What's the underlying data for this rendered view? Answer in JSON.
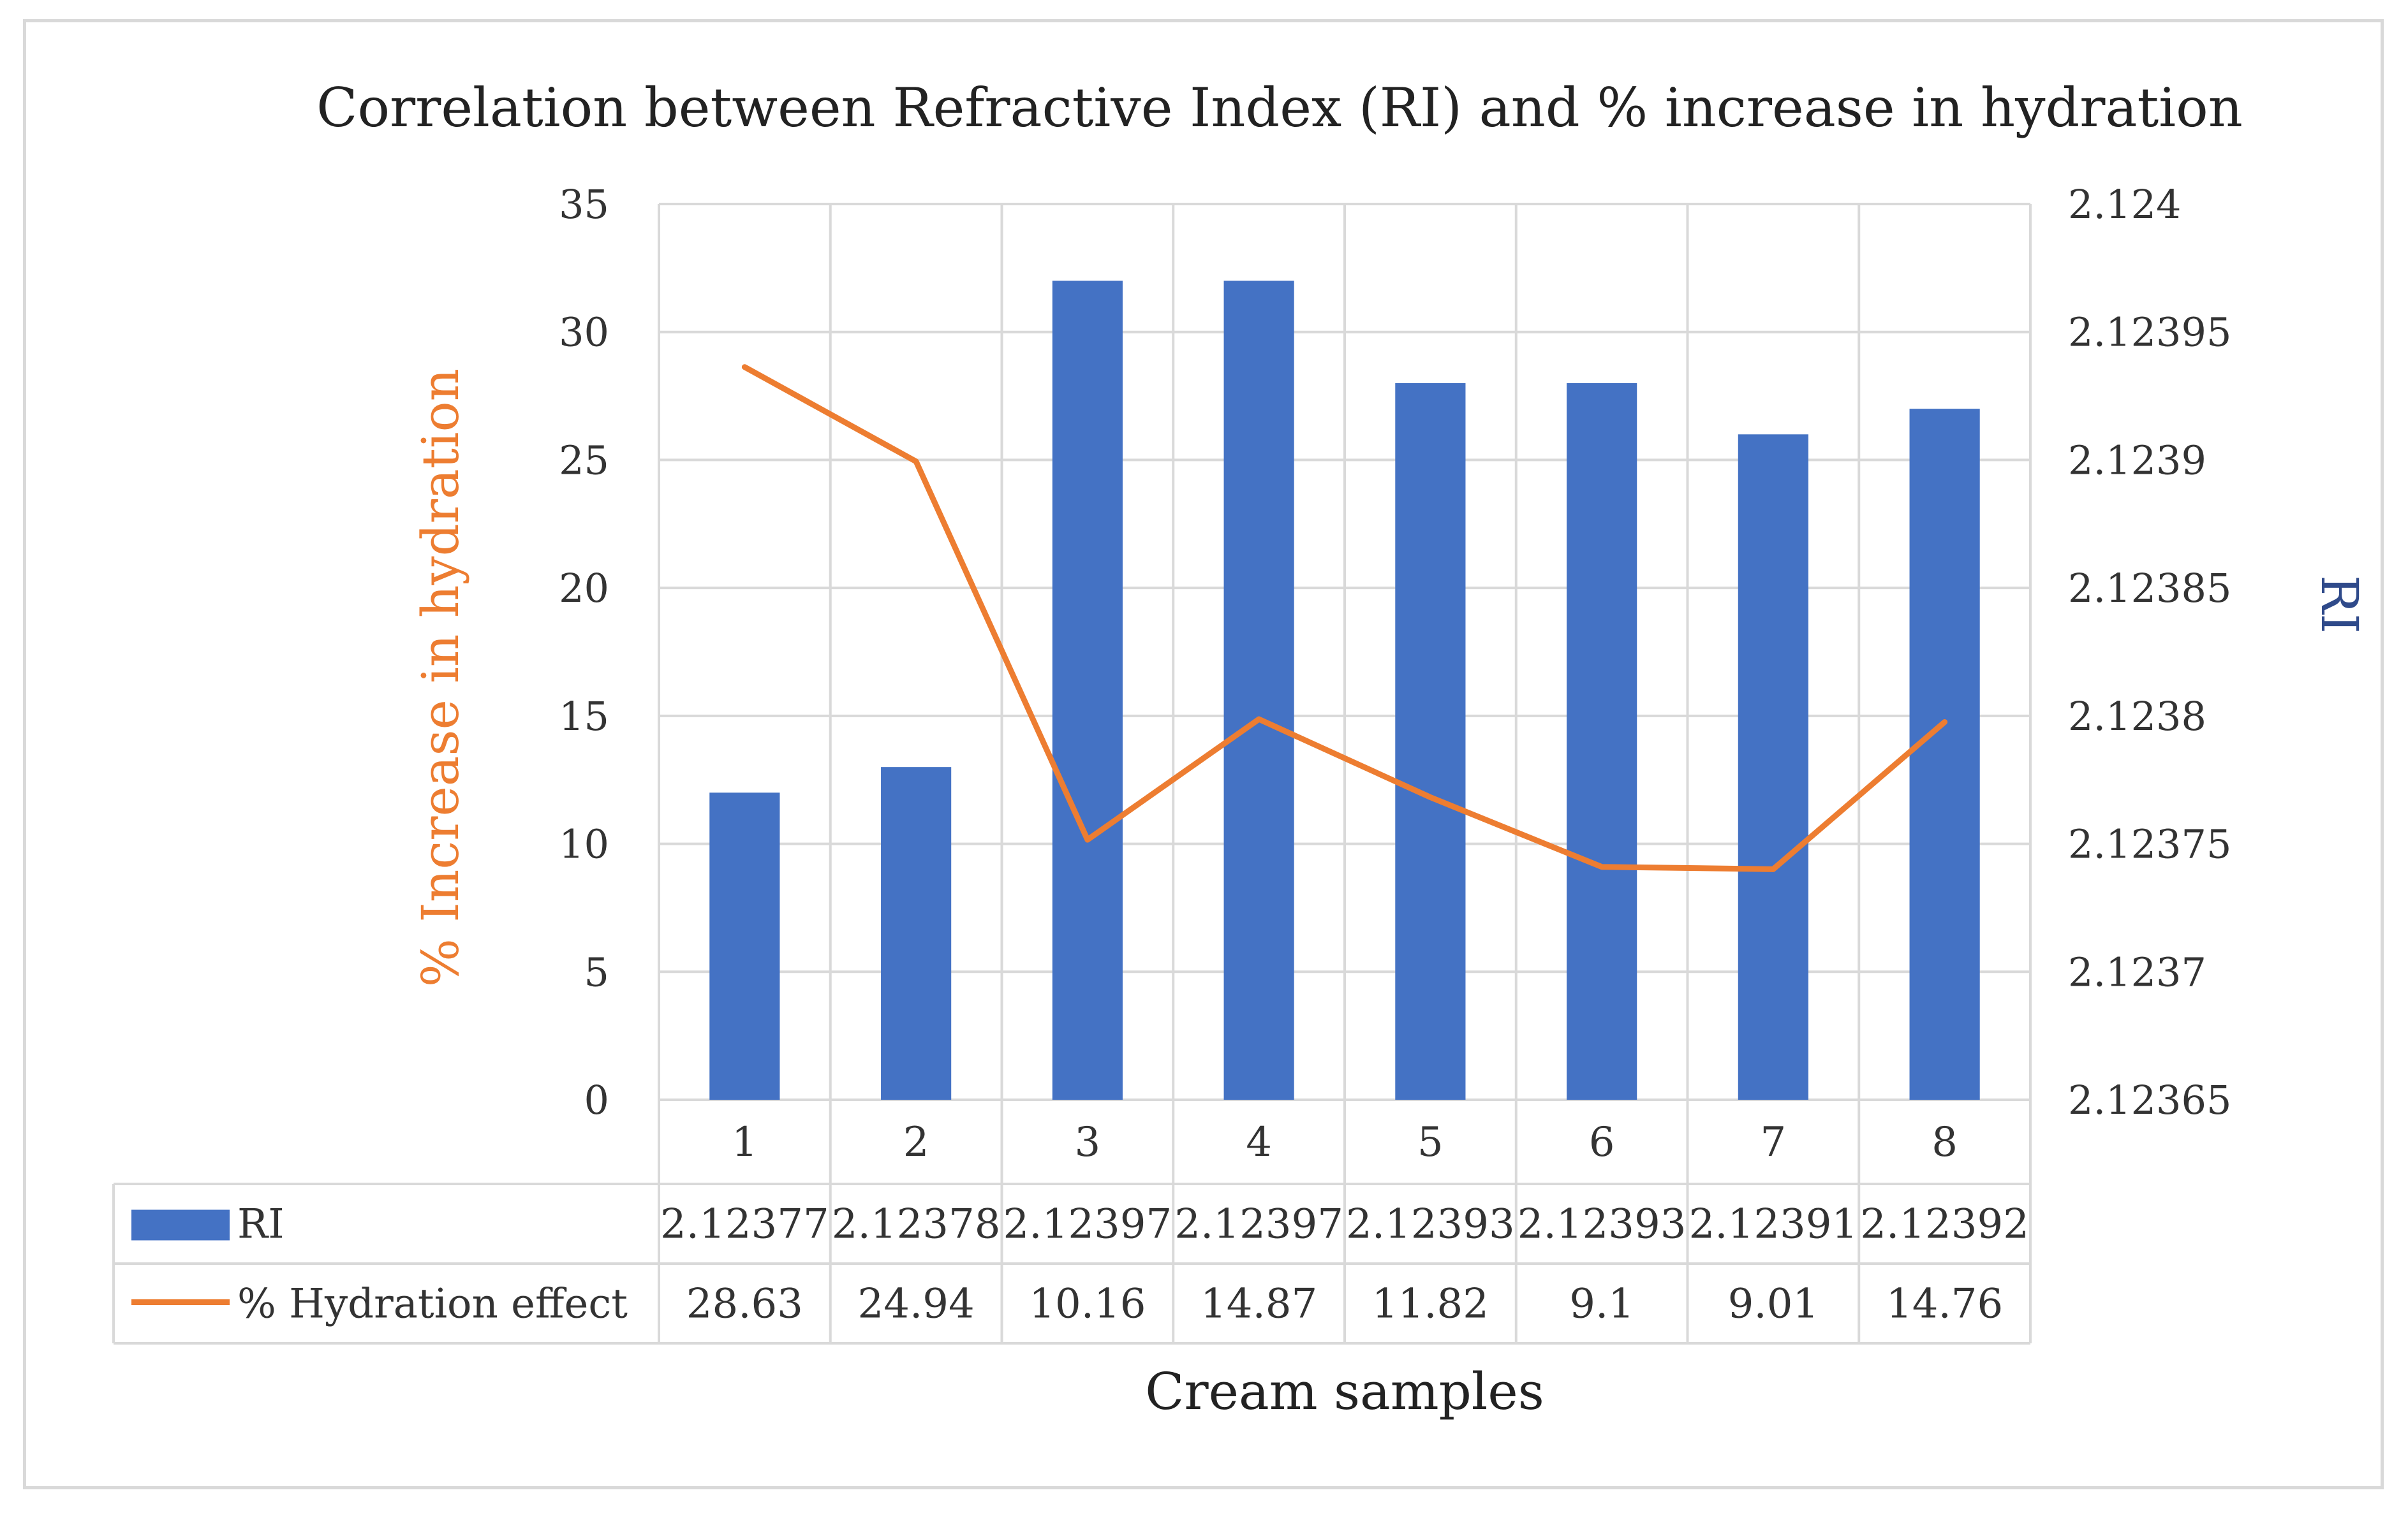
{
  "chart_data": {
    "type": "bar+line",
    "title": "Correlation between Refractive Index (RI) and % increase in hydration",
    "xlabel": "Cream samples",
    "categories": [
      "1",
      "2",
      "3",
      "4",
      "5",
      "6",
      "7",
      "8"
    ],
    "series": [
      {
        "name": "RI",
        "type": "bar",
        "axis": "right",
        "color": "#4472c4",
        "values": [
          2.12377,
          2.12378,
          2.12397,
          2.12397,
          2.12393,
          2.12393,
          2.12391,
          2.12392
        ],
        "labels": [
          "2.12377",
          "2.12378",
          "2.12397",
          "2.12397",
          "2.12393",
          "2.12393",
          "2.12391",
          "2.12392"
        ]
      },
      {
        "name": "% Hydration effect",
        "type": "line",
        "axis": "left",
        "color": "#ed7d31",
        "values": [
          28.63,
          24.94,
          10.16,
          14.87,
          11.82,
          9.1,
          9.01,
          14.76
        ],
        "labels": [
          "28.63",
          "24.94",
          "10.16",
          "14.87",
          "11.82",
          "9.1",
          "9.01",
          "14.76"
        ]
      }
    ],
    "y_left": {
      "label": "% Increase  in hydration",
      "color": "#ed7d31",
      "min": 0,
      "max": 35,
      "step": 5,
      "ticks": [
        "0",
        "5",
        "10",
        "15",
        "20",
        "25",
        "30",
        "35"
      ]
    },
    "y_right": {
      "label": "RI",
      "color": "#2f4a8a",
      "min": 2.12365,
      "max": 2.124,
      "step": 5e-05,
      "ticks": [
        "2.12365",
        "2.1237",
        "2.12375",
        "2.1238",
        "2.12385",
        "2.1239",
        "2.12395",
        "2.124"
      ]
    },
    "grid": true,
    "data_table": true
  }
}
